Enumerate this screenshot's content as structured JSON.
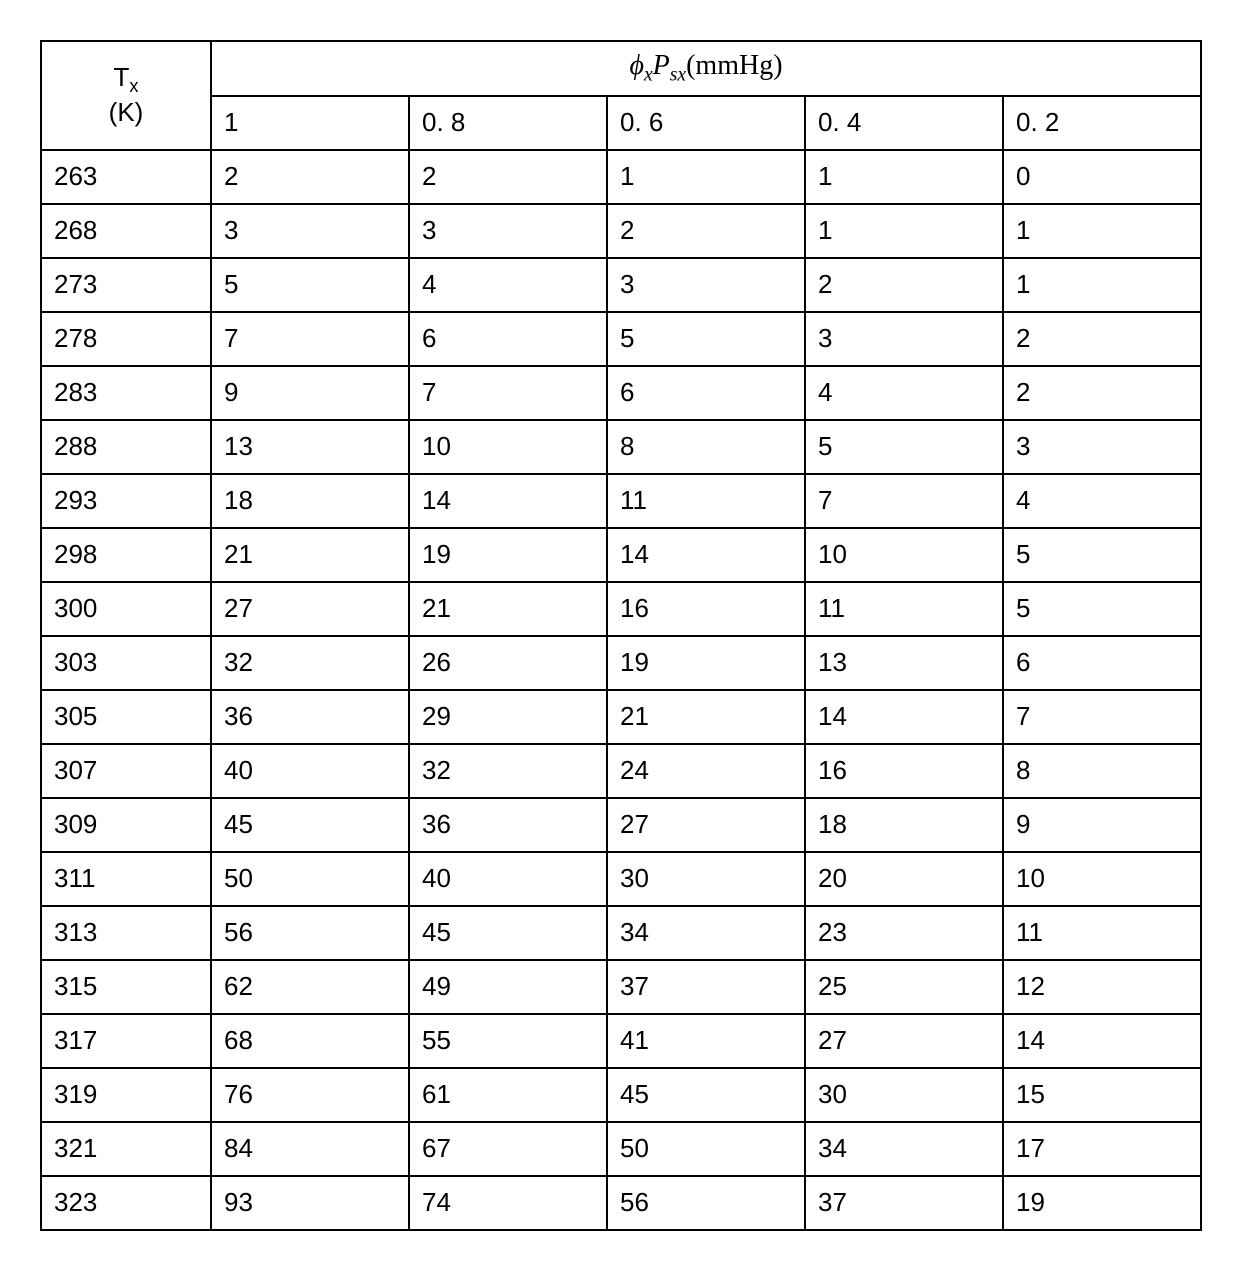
{
  "table": {
    "rowHeaderTop": "T",
    "rowHeaderTopSub": "x",
    "rowHeaderBottom": "(K)",
    "colHeaderFormula": {
      "phi": "ϕ",
      "phiSub": "x",
      "P": "P",
      "PSub": "sx",
      "unit": "(mmHg)"
    },
    "subHeaders": [
      "1",
      "0. 8",
      "0. 6",
      "0. 4",
      "0. 2"
    ],
    "rows": [
      {
        "t": "263",
        "v": [
          "2",
          "2",
          "1",
          "1",
          "0"
        ]
      },
      {
        "t": "268",
        "v": [
          "3",
          "3",
          "2",
          "1",
          "1"
        ]
      },
      {
        "t": "273",
        "v": [
          "5",
          "4",
          "3",
          "2",
          "1"
        ]
      },
      {
        "t": "278",
        "v": [
          "7",
          "6",
          "5",
          "3",
          "2"
        ]
      },
      {
        "t": "283",
        "v": [
          "9",
          "7",
          "6",
          "4",
          "2"
        ]
      },
      {
        "t": "288",
        "v": [
          "13",
          "10",
          "8",
          "5",
          "3"
        ]
      },
      {
        "t": "293",
        "v": [
          "18",
          "14",
          "11",
          "7",
          "4"
        ]
      },
      {
        "t": "298",
        "v": [
          "21",
          "19",
          "14",
          "10",
          "5"
        ]
      },
      {
        "t": "300",
        "v": [
          "27",
          "21",
          "16",
          "11",
          "5"
        ]
      },
      {
        "t": "303",
        "v": [
          "32",
          "26",
          "19",
          "13",
          "6"
        ]
      },
      {
        "t": "305",
        "v": [
          "36",
          "29",
          "21",
          "14",
          "7"
        ]
      },
      {
        "t": "307",
        "v": [
          "40",
          "32",
          "24",
          "16",
          "8"
        ]
      },
      {
        "t": "309",
        "v": [
          "45",
          "36",
          "27",
          "18",
          "9"
        ]
      },
      {
        "t": "311",
        "v": [
          "50",
          "40",
          "30",
          "20",
          "10"
        ]
      },
      {
        "t": "313",
        "v": [
          "56",
          "45",
          "34",
          "23",
          "11"
        ]
      },
      {
        "t": "315",
        "v": [
          "62",
          "49",
          "37",
          "25",
          "12"
        ]
      },
      {
        "t": "317",
        "v": [
          "68",
          "55",
          "41",
          "27",
          "14"
        ]
      },
      {
        "t": "319",
        "v": [
          "76",
          "61",
          "45",
          "30",
          "15"
        ]
      },
      {
        "t": "321",
        "v": [
          "84",
          "67",
          "50",
          "34",
          "17"
        ]
      },
      {
        "t": "323",
        "v": [
          "93",
          "74",
          "56",
          "37",
          "19"
        ]
      }
    ],
    "style": {
      "borderColor": "#000000",
      "background": "#ffffff",
      "fontSize": 26,
      "headerFontSize": 28,
      "cellPadding": "8px 12px"
    }
  }
}
